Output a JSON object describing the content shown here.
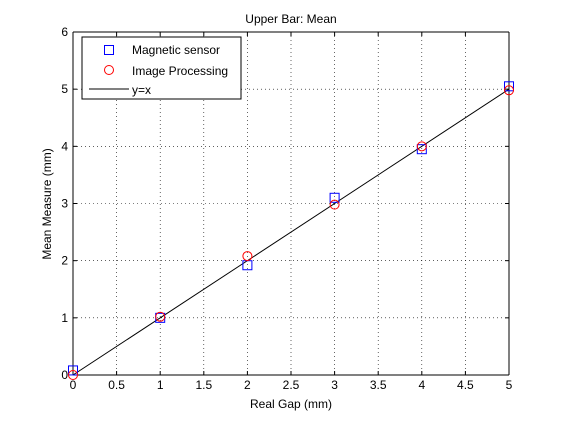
{
  "chart_data": {
    "type": "scatter",
    "title": "Upper Bar: Mean",
    "xlabel": "Real Gap (mm)",
    "ylabel": "Mean Measure (mm)",
    "xlim": [
      0,
      5
    ],
    "ylim": [
      0,
      6
    ],
    "xticks": [
      "0",
      "0.5",
      "1",
      "1.5",
      "2",
      "2.5",
      "3",
      "3.5",
      "4",
      "4.5",
      "5"
    ],
    "yticks": [
      "0",
      "1",
      "2",
      "3",
      "4",
      "5",
      "6"
    ],
    "grid": true,
    "legend_position": "top-left",
    "series": [
      {
        "name": "Magnetic sensor",
        "marker": "square",
        "color": "#0000ff",
        "x": [
          0,
          1,
          2,
          3,
          4,
          5
        ],
        "y": [
          0.08,
          1.0,
          1.92,
          3.1,
          3.95,
          5.05
        ]
      },
      {
        "name": "Image Processing",
        "marker": "circle",
        "color": "#ff0000",
        "x": [
          0,
          1,
          2,
          3,
          4,
          5
        ],
        "y": [
          0.0,
          1.02,
          2.08,
          2.98,
          4.0,
          4.98
        ]
      },
      {
        "name": "y=x",
        "marker": "line",
        "color": "#000000",
        "x": [
          0,
          5
        ],
        "y": [
          0,
          5
        ]
      }
    ]
  }
}
